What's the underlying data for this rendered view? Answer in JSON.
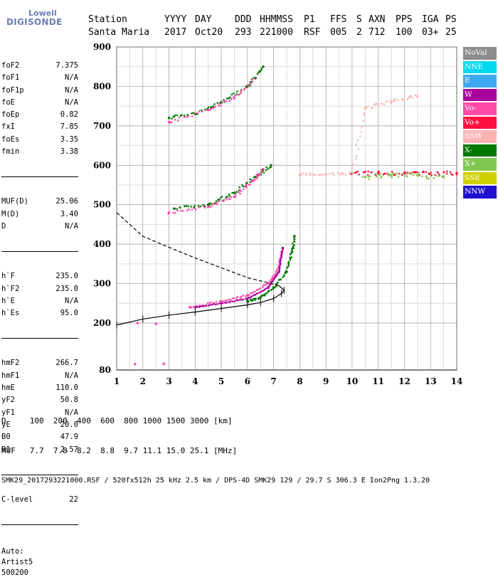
{
  "logo": {
    "line1": "Lowell",
    "line2": "DIGISONDE"
  },
  "header": {
    "labels": [
      "Station",
      "YYYY",
      "DAY",
      "DDD",
      "HHMMSS",
      "P1",
      "FFS",
      "S",
      "AXN",
      "PPS",
      "IGA",
      "PS"
    ],
    "values": [
      "Santa Maria",
      "2017",
      "Oct20",
      "293",
      "221000",
      "RSF",
      "005",
      "2",
      "712",
      "100",
      "03+",
      "25"
    ]
  },
  "params": {
    "group1": [
      {
        "name": "foF2",
        "value": "7.375"
      },
      {
        "name": "foF1",
        "value": "N/A"
      },
      {
        "name": "foF1p",
        "value": "N/A"
      },
      {
        "name": "foE",
        "value": "N/A"
      },
      {
        "name": "foEp",
        "value": "0.82"
      },
      {
        "name": "fxI",
        "value": "7.85"
      },
      {
        "name": "foEs",
        "value": "3.35"
      },
      {
        "name": "fmin",
        "value": "3.38"
      }
    ],
    "group2": [
      {
        "name": "MUF(D)",
        "value": "25.06"
      },
      {
        "name": "M(D)",
        "value": "3.40"
      },
      {
        "name": "D",
        "value": "N/A"
      }
    ],
    "group3": [
      {
        "name": "h`F",
        "value": "235.0"
      },
      {
        "name": "h`F2",
        "value": "235.0"
      },
      {
        "name": "h`E",
        "value": "N/A"
      },
      {
        "name": "h`Es",
        "value": "95.0"
      }
    ],
    "group4": [
      {
        "name": "hmF2",
        "value": "266.7"
      },
      {
        "name": "hmF1",
        "value": "N/A"
      },
      {
        "name": "hmE",
        "value": "110.0"
      },
      {
        "name": "yF2",
        "value": "50.8"
      },
      {
        "name": "yF1",
        "value": "N/A"
      },
      {
        "name": "yE",
        "value": "20.0"
      },
      {
        "name": "B0",
        "value": "47.9"
      },
      {
        "name": "B1",
        "value": "2.57"
      }
    ],
    "group5": [
      {
        "name": "C-level",
        "value": "22"
      }
    ],
    "auto": [
      "Auto:",
      "Artist5",
      "500200"
    ]
  },
  "legend": [
    {
      "label": "NoVal",
      "color": "#8c8c8c"
    },
    {
      "label": "NNE",
      "color": "#00d8f0"
    },
    {
      "label": "E",
      "color": "#3ca8f0"
    },
    {
      "label": "W",
      "color": "#a8009c"
    },
    {
      "label": "Vo-",
      "color": "#ff4aa8"
    },
    {
      "label": "Vo+",
      "color": "#ff1040"
    },
    {
      "label": "SSW",
      "color": "#ffb4b4"
    },
    {
      "label": "X-",
      "color": "#007800"
    },
    {
      "label": "X+",
      "color": "#82c850"
    },
    {
      "label": "SSE",
      "color": "#d0d000"
    },
    {
      "label": "NNW",
      "color": "#2010d0"
    }
  ],
  "footer": {
    "line1": "D     100  200  400  600  800 1000 1500 3000 [km]",
    "line2": "MUF   7.7  7.8  8.2  8.8  9.7 11.1 15.0 25.1 [MHz]",
    "line3": "SMK29_2017293221000.RSF / 520fx512h 25 kHz 2.5 km / DPS-4D SMK29 129 / 29.7 S 306.3 E Ion2Png 1.3.20"
  },
  "chart_data": {
    "type": "scatter",
    "xlim": [
      1,
      14
    ],
    "ylim": [
      80,
      900
    ],
    "x_ticks": [
      1,
      2,
      3,
      4,
      5,
      6,
      7,
      8,
      9,
      10,
      11,
      12,
      13,
      14
    ],
    "y_ticks": [
      80,
      200,
      300,
      400,
      500,
      600,
      700,
      800,
      900
    ],
    "grid": true,
    "legend_position": "right",
    "xlabel": "",
    "ylabel": "",
    "series": [
      {
        "name": "X-",
        "color": "#007800",
        "points": [
          [
            6.0,
            255
          ],
          [
            6.5,
            265
          ],
          [
            7.0,
            290
          ],
          [
            7.5,
            330
          ],
          [
            7.7,
            380
          ],
          [
            7.8,
            420
          ],
          [
            3.0,
            720
          ],
          [
            4.0,
            730
          ],
          [
            5.0,
            760
          ],
          [
            6.0,
            800
          ],
          [
            6.6,
            850
          ],
          [
            3.2,
            490
          ],
          [
            4.5,
            500
          ],
          [
            5.5,
            530
          ],
          [
            6.3,
            570
          ],
          [
            6.9,
            600
          ]
        ]
      },
      {
        "name": "Vo-",
        "color": "#ff4aa8",
        "points": [
          [
            3.8,
            240
          ],
          [
            5.0,
            255
          ],
          [
            6.0,
            270
          ],
          [
            6.8,
            300
          ],
          [
            7.2,
            340
          ],
          [
            7.3,
            380
          ],
          [
            3.0,
            710
          ],
          [
            4.5,
            740
          ],
          [
            5.5,
            770
          ],
          [
            6.3,
            820
          ],
          [
            3.0,
            480
          ],
          [
            4.5,
            495
          ],
          [
            5.5,
            520
          ],
          [
            6.2,
            560
          ],
          [
            6.6,
            590
          ],
          [
            1.8,
            200
          ],
          [
            2.5,
            198
          ],
          [
            1.7,
            95
          ],
          [
            2.8,
            96
          ]
        ]
      },
      {
        "name": "W",
        "color": "#a8009c",
        "points": [
          [
            4.0,
            240
          ],
          [
            5.0,
            250
          ],
          [
            6.0,
            262
          ],
          [
            6.8,
            290
          ],
          [
            7.2,
            330
          ],
          [
            7.35,
            390
          ]
        ]
      },
      {
        "name": "Vo+",
        "color": "#ff1040",
        "points": [
          [
            10.0,
            580
          ],
          [
            11.0,
            580
          ],
          [
            12.0,
            580
          ],
          [
            13.0,
            580
          ],
          [
            14.0,
            580
          ]
        ]
      },
      {
        "name": "X+",
        "color": "#82c850",
        "points": [
          [
            10.5,
            570
          ],
          [
            11.5,
            575
          ],
          [
            12.5,
            575
          ],
          [
            13.5,
            570
          ]
        ]
      },
      {
        "name": "SSW",
        "color": "#ffb4b4",
        "points": [
          [
            8.0,
            575
          ],
          [
            9.0,
            578
          ],
          [
            10.0,
            580
          ],
          [
            10.5,
            745
          ],
          [
            11.5,
            760
          ],
          [
            12.5,
            775
          ]
        ]
      }
    ],
    "hf_profile": {
      "name": "h'F trace",
      "points": [
        [
          1.0,
          195
        ],
        [
          2.0,
          210
        ],
        [
          3.0,
          220
        ],
        [
          4.0,
          228
        ],
        [
          5.0,
          237
        ],
        [
          6.0,
          246
        ],
        [
          6.5,
          252
        ],
        [
          7.0,
          262
        ],
        [
          7.3,
          275
        ],
        [
          7.4,
          283
        ],
        [
          7.2,
          295
        ],
        [
          6.8,
          302
        ],
        [
          6.0,
          315
        ],
        [
          5.0,
          340
        ],
        [
          4.0,
          365
        ],
        [
          3.0,
          392
        ],
        [
          2.0,
          420
        ],
        [
          1.0,
          480
        ]
      ]
    }
  }
}
